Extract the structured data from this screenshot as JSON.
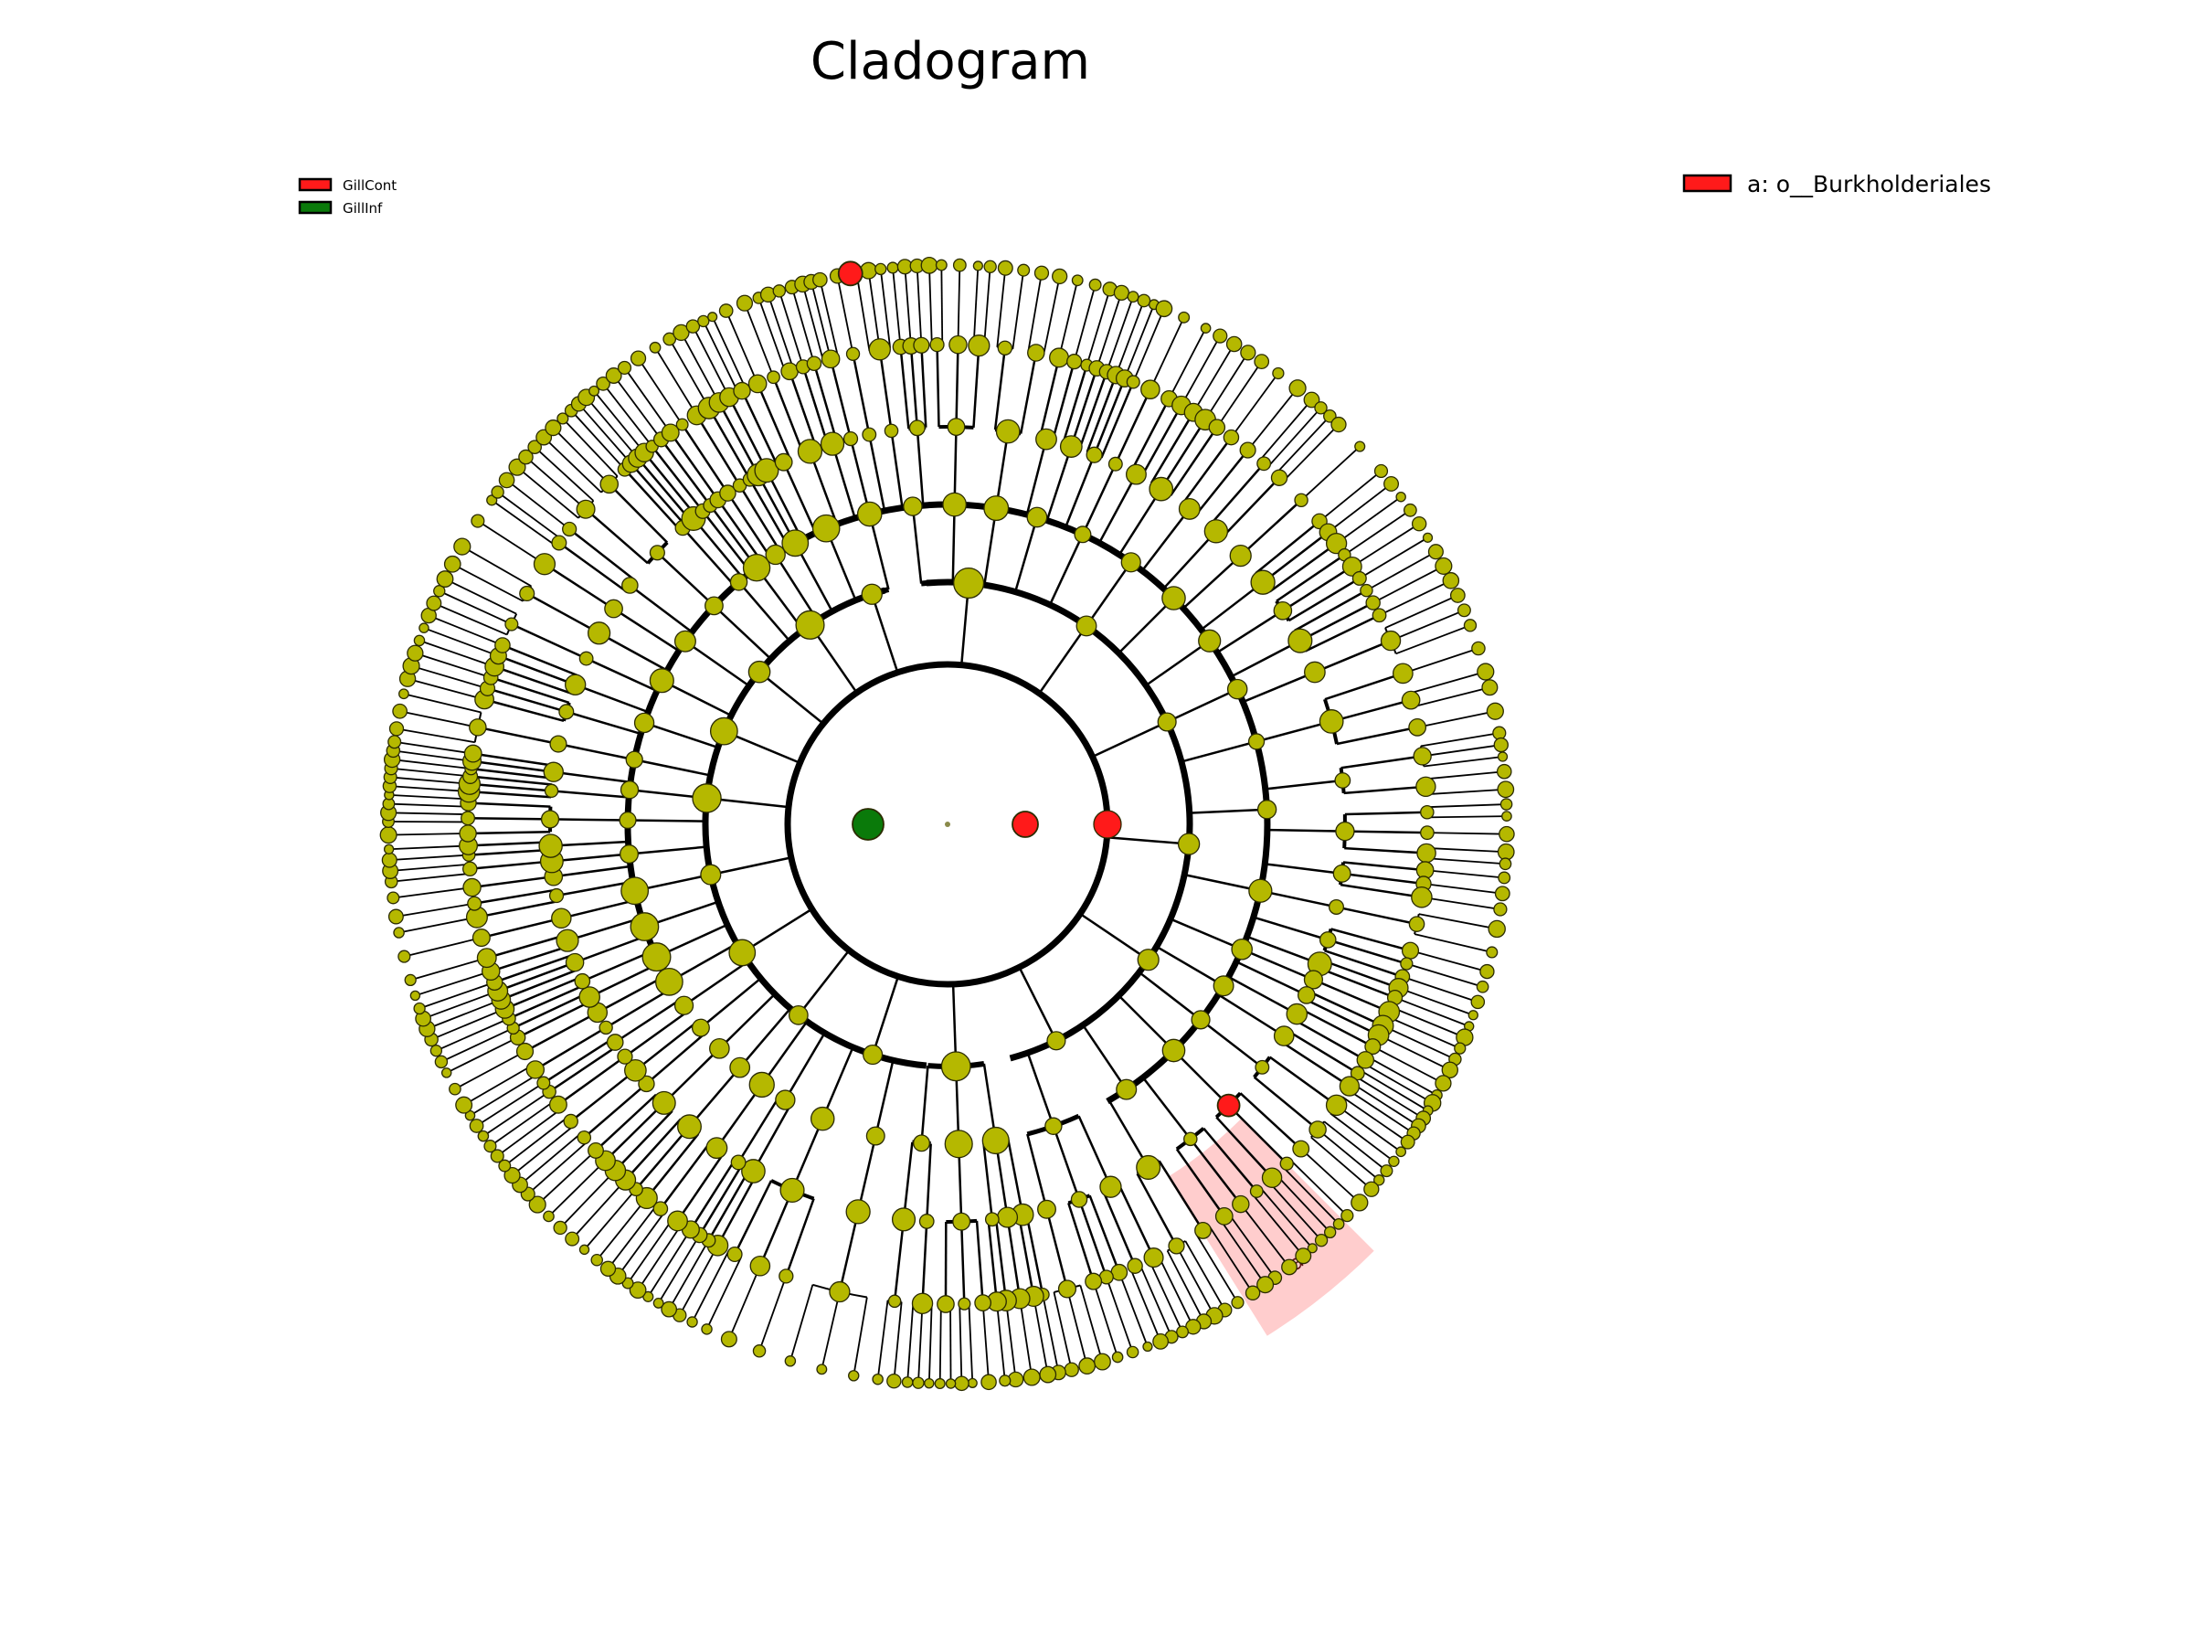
{
  "title": "Cladogram",
  "colors": {
    "background": "#ffffff",
    "node_default": "#b5b800",
    "node_stroke": "#2b2b00",
    "branch": "#000000",
    "GillCont": "#ff1a1a",
    "GillInf": "#0a7a0a",
    "highlight_shade": "#ffb8b8"
  },
  "class_legend": [
    {
      "label": "GillCont",
      "color": "#ff1a1a"
    },
    {
      "label": "GillInf",
      "color": "#0a7a0a"
    }
  ],
  "clade_legend": [
    {
      "label": "a: o__Burkholderiales",
      "color": "#ff1a1a"
    }
  ],
  "highlighted_clades": [
    {
      "letter": "a",
      "name": "o__Burkholderiales",
      "enriched_in": "GillCont"
    }
  ],
  "enriched_nodes": [
    {
      "rank": "phylum",
      "class": "GillCont"
    },
    {
      "rank": "phylum",
      "class": "GillInf"
    },
    {
      "rank": "order",
      "class": "GillCont",
      "clade": "a"
    },
    {
      "rank": "species",
      "class": "GillCont"
    }
  ]
}
